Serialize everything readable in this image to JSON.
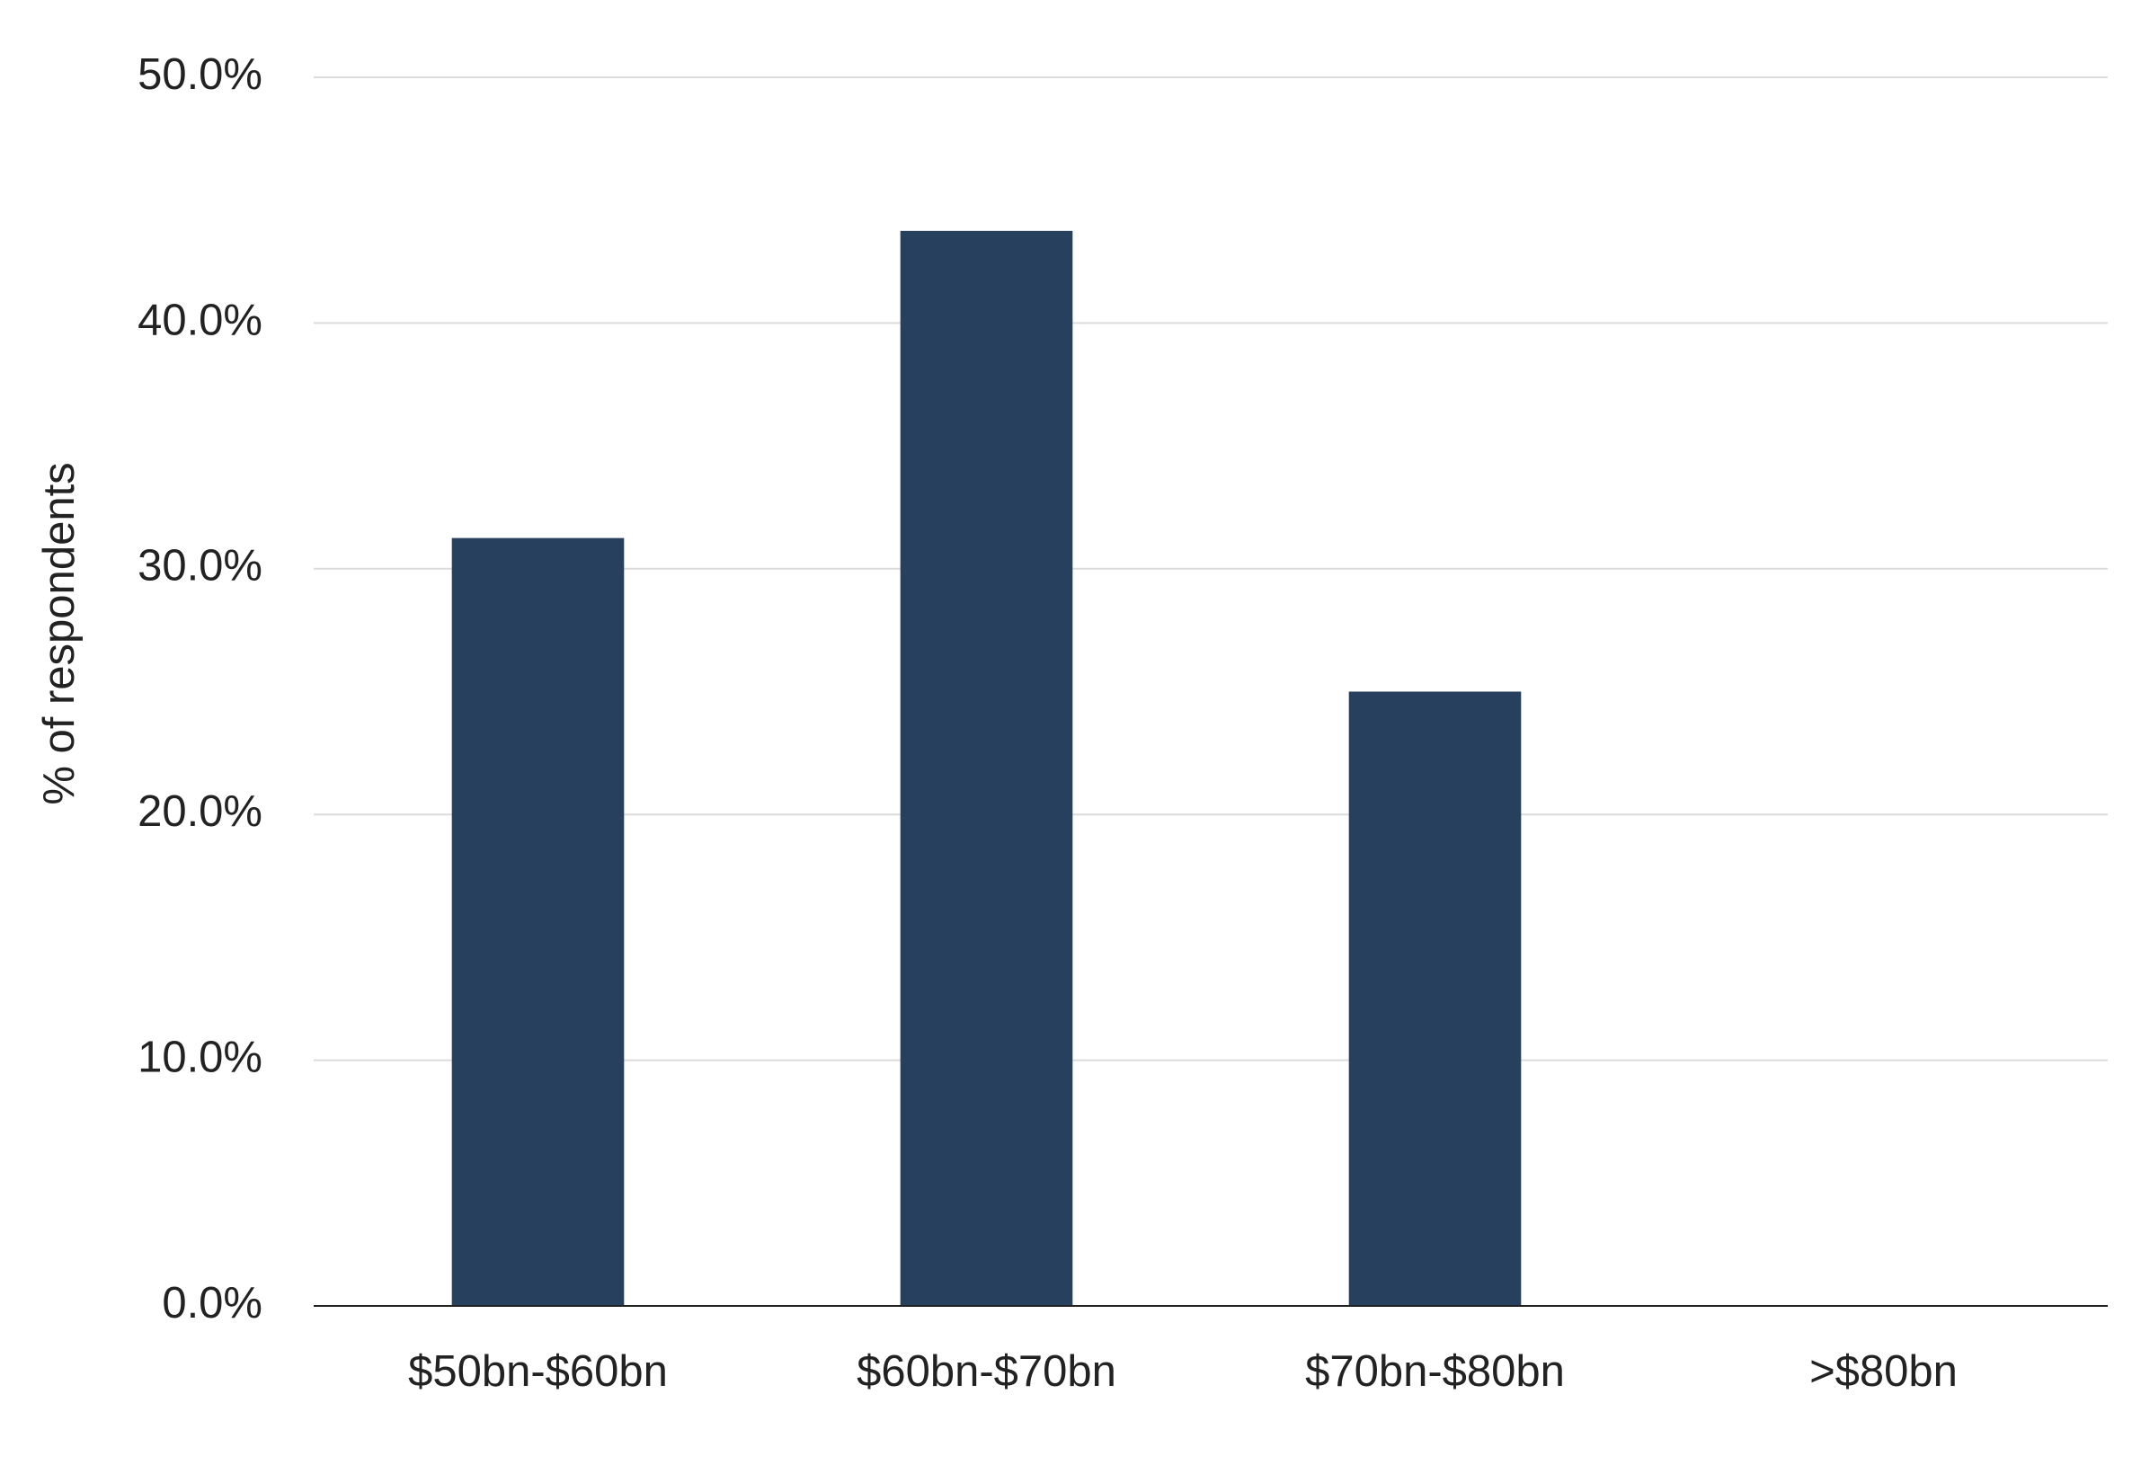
{
  "chart_data": {
    "type": "bar",
    "y_axis_label": "% of respondents",
    "categories": [
      "$50bn-$60bn",
      "$60bn-$70bn",
      "$70bn-$80bn",
      ">$80bn"
    ],
    "values": [
      31.25,
      43.75,
      25,
      0
    ],
    "color": "#27405e",
    "ylim": [
      0,
      50
    ],
    "yticks": [
      {
        "value": 0,
        "label": "0.0%"
      },
      {
        "value": 10,
        "label": "10.0%"
      },
      {
        "value": 20,
        "label": "20.0%"
      },
      {
        "value": 30,
        "label": "30.0%"
      },
      {
        "value": 40,
        "label": "40.0%"
      },
      {
        "value": 50,
        "label": "50.0%"
      }
    ],
    "grid": true
  }
}
